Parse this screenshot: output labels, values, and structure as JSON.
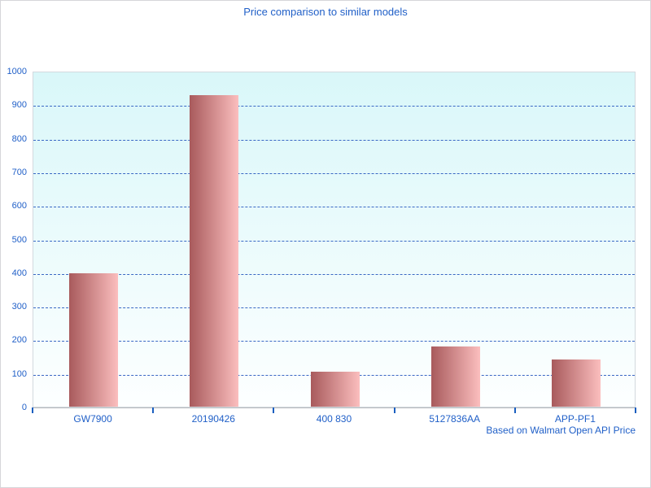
{
  "chart_data": {
    "type": "bar",
    "title": "Price comparison to similar models",
    "footer": "Based on Walmart Open API Price",
    "categories": [
      "GW7900",
      "20190426",
      "400 830",
      "5127836AA",
      "APP-PF1"
    ],
    "values": [
      397,
      927,
      103,
      179,
      140
    ],
    "xlabel": "",
    "ylabel": "",
    "ylim": [
      0,
      1000
    ],
    "yticks": [
      0,
      100,
      200,
      300,
      400,
      500,
      600,
      700,
      800,
      900,
      1000
    ],
    "grid": "horizontal-dashed",
    "legend": "none",
    "colors": {
      "text_blue": "#2160c8",
      "gridline": "#3a68c4",
      "tick": "#1a5fc0",
      "bar_gradient_left": "#a85a5c",
      "bar_gradient_right": "#fbbebe",
      "plot_bg_top": "#d9f7f9",
      "plot_bg_bottom": "#fdffff",
      "plot_border": "#d3d9de",
      "axis_line": "#b6babe",
      "window_border": "#d6d6da",
      "window_bg": "#ffffff"
    }
  }
}
